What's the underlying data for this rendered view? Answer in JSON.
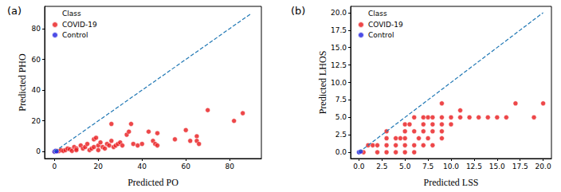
{
  "chart_data": [
    {
      "type": "scatter",
      "title": "(a)",
      "x_label": "Predicted PO",
      "y_label": "Predicted PHO",
      "legend": "upper left",
      "legend_title": "Class",
      "grid": false,
      "marker": "circle",
      "xlim": [
        -4.5,
        94.5
      ],
      "ylim": [
        -4.5,
        94.5
      ],
      "xticks": [
        0,
        20,
        40,
        60,
        80
      ],
      "yticks": [
        0,
        20,
        40,
        60,
        80
      ],
      "reference_line": {
        "x": [
          0,
          90
        ],
        "y": [
          0,
          90
        ],
        "color": "#1f77b4",
        "line_style": "dashed"
      },
      "series": [
        {
          "name": "COVID-19",
          "color": "#e8191c",
          "x": [
            0,
            1,
            2,
            3,
            4,
            5,
            6,
            7,
            8,
            9,
            10,
            10,
            12,
            13,
            14,
            15,
            16,
            17,
            18,
            18,
            19,
            20,
            20,
            21,
            22,
            23,
            24,
            25,
            26,
            26,
            27,
            28,
            29,
            30,
            31,
            33,
            34,
            35,
            36,
            38,
            40,
            43,
            45,
            46,
            47,
            47,
            55,
            60,
            62,
            65,
            65,
            66,
            70,
            82,
            86
          ],
          "y": [
            0,
            0.5,
            0.3,
            1,
            0.5,
            1,
            2,
            1.5,
            0.5,
            3,
            2,
            1,
            4,
            2,
            3,
            5,
            1,
            2,
            3,
            8,
            9,
            4,
            1,
            6,
            3,
            2,
            5,
            4,
            18,
            7,
            3,
            4,
            5,
            6,
            4,
            11,
            13,
            18,
            5,
            4,
            5,
            13,
            7,
            5,
            12,
            4,
            8,
            14,
            7,
            10,
            7,
            5,
            27,
            20,
            25
          ]
        },
        {
          "name": "Control",
          "color": "#1f1fe0",
          "x": [
            0,
            0.5,
            1
          ],
          "y": [
            0,
            0.5,
            0.2
          ]
        }
      ]
    },
    {
      "type": "scatter",
      "title": "(b)",
      "x_label": "Predicted LSS",
      "y_label": "Predicted LHOS",
      "legend": "upper left",
      "legend_title": "Class",
      "grid": false,
      "marker": "circle",
      "xlim": [
        -0.9,
        20.9
      ],
      "ylim": [
        -0.9,
        20.9
      ],
      "xticks": [
        {
          "value": 0,
          "label": "0.0"
        },
        {
          "value": 2.5,
          "label": "2.5"
        },
        {
          "value": 5,
          "label": "5.0"
        },
        {
          "value": 7.5,
          "label": "7.5"
        },
        {
          "value": 10,
          "label": "10.0"
        },
        {
          "value": 12.5,
          "label": "12.5"
        },
        {
          "value": 15,
          "label": "15.0"
        },
        {
          "value": 17.5,
          "label": "17.5"
        },
        {
          "value": 20,
          "label": "20.0"
        }
      ],
      "yticks": [
        {
          "value": 0,
          "label": "0.0"
        },
        {
          "value": 2.5,
          "label": "2.5"
        },
        {
          "value": 5,
          "label": "5.0"
        },
        {
          "value": 7.5,
          "label": "7.5"
        },
        {
          "value": 10,
          "label": "10.0"
        },
        {
          "value": 12.5,
          "label": "12.5"
        },
        {
          "value": 15,
          "label": "15.0"
        },
        {
          "value": 17.5,
          "label": "17.5"
        },
        {
          "value": 20,
          "label": "20.0"
        }
      ],
      "reference_line": {
        "x": [
          0,
          20
        ],
        "y": [
          0,
          20
        ],
        "color": "#1f77b4",
        "line_style": "dashed"
      },
      "series": [
        {
          "name": "COVID-19",
          "color": "#e8191c",
          "x": [
            0.5,
            1,
            1.5,
            2,
            2,
            3,
            3,
            3,
            3,
            4,
            4,
            4,
            4.5,
            5,
            5,
            5,
            5,
            5,
            5.5,
            6,
            6,
            6,
            6,
            6.5,
            7,
            7,
            7,
            7,
            7.5,
            7.5,
            8,
            8,
            8,
            8,
            9,
            9,
            9,
            9,
            9,
            10,
            10,
            11,
            11,
            12,
            13,
            14,
            15,
            16,
            17,
            19,
            20
          ],
          "y": [
            0,
            1,
            1,
            0,
            1,
            3,
            2,
            1,
            0,
            2,
            1,
            0,
            2,
            4,
            3,
            2,
            1,
            0,
            4,
            5,
            3,
            1,
            0,
            2,
            5,
            4,
            3,
            1,
            5,
            2,
            5,
            4,
            3,
            1,
            7,
            5,
            4,
            3,
            2,
            5,
            4,
            6,
            5,
            5,
            5,
            5,
            5,
            5,
            7,
            5,
            7
          ]
        },
        {
          "name": "Control",
          "color": "#1f1fe0",
          "x": [
            0,
            0.2
          ],
          "y": [
            0,
            0.1
          ]
        }
      ]
    }
  ]
}
